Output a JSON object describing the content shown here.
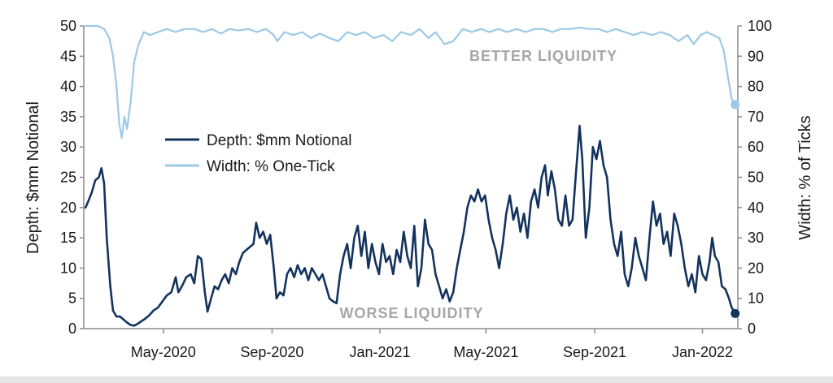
{
  "chart_data": {
    "type": "line",
    "title": "",
    "xlabel": "",
    "ylabel_left": "Depth: $mm Notional",
    "ylabel_right": "Width: % of Ticks",
    "ylim_left": [
      0,
      50
    ],
    "ylim_right": [
      0,
      100
    ],
    "yticks_left": [
      "0",
      "5",
      "10",
      "15",
      "20",
      "25",
      "30",
      "35",
      "40",
      "45",
      "50"
    ],
    "yticks_right": [
      "0",
      "10",
      "20",
      "30",
      "40",
      "50",
      "60",
      "70",
      "80",
      "90",
      "100"
    ],
    "x_tick_labels": [
      {
        "date": "2020-05-01",
        "label": "May-2020"
      },
      {
        "date": "2020-09-01",
        "label": "Sep-2020"
      },
      {
        "date": "2021-01-01",
        "label": "Jan-2021"
      },
      {
        "date": "2021-05-01",
        "label": "May-2021"
      },
      {
        "date": "2021-09-01",
        "label": "Sep-2021"
      },
      {
        "date": "2022-01-01",
        "label": "Jan-2022"
      }
    ],
    "xlim": [
      "2020-02-01",
      "2022-02-10"
    ],
    "legend": {
      "placement": "center-left",
      "entries": [
        "Depth: $mm Notional",
        "Width: % One-Tick"
      ]
    },
    "annotations": {
      "top": "BETTER LIQUIDITY",
      "bottom": "WORSE LIQUIDITY"
    },
    "series": [
      {
        "name": "Depth: $mm Notional",
        "axis": "left",
        "color": "#13335e",
        "points": [
          [
            "2020-02-03",
            20
          ],
          [
            "2020-02-06",
            21
          ],
          [
            "2020-02-10",
            22.5
          ],
          [
            "2020-02-14",
            24.5
          ],
          [
            "2020-02-18",
            25
          ],
          [
            "2020-02-21",
            26.5
          ],
          [
            "2020-02-24",
            24
          ],
          [
            "2020-02-27",
            15
          ],
          [
            "2020-03-02",
            7
          ],
          [
            "2020-03-05",
            3
          ],
          [
            "2020-03-09",
            2
          ],
          [
            "2020-03-13",
            2
          ],
          [
            "2020-03-17",
            1.5
          ],
          [
            "2020-03-21",
            1
          ],
          [
            "2020-03-25",
            0.6
          ],
          [
            "2020-03-29",
            0.5
          ],
          [
            "2020-04-02",
            0.8
          ],
          [
            "2020-04-06",
            1.2
          ],
          [
            "2020-04-10",
            1.6
          ],
          [
            "2020-04-15",
            2.2
          ],
          [
            "2020-04-20",
            3
          ],
          [
            "2020-04-25",
            3.5
          ],
          [
            "2020-04-30",
            4.5
          ],
          [
            "2020-05-05",
            5.5
          ],
          [
            "2020-05-10",
            6
          ],
          [
            "2020-05-15",
            8.5
          ],
          [
            "2020-05-18",
            6
          ],
          [
            "2020-05-22",
            7
          ],
          [
            "2020-05-27",
            8.5
          ],
          [
            "2020-06-01",
            9
          ],
          [
            "2020-06-05",
            7.5
          ],
          [
            "2020-06-09",
            12
          ],
          [
            "2020-06-13",
            11.5
          ],
          [
            "2020-06-17",
            6
          ],
          [
            "2020-06-20",
            2.8
          ],
          [
            "2020-06-24",
            5
          ],
          [
            "2020-06-28",
            7
          ],
          [
            "2020-07-02",
            6.5
          ],
          [
            "2020-07-06",
            8
          ],
          [
            "2020-07-10",
            9
          ],
          [
            "2020-07-14",
            7.5
          ],
          [
            "2020-07-18",
            10
          ],
          [
            "2020-07-22",
            9
          ],
          [
            "2020-07-26",
            11
          ],
          [
            "2020-07-30",
            12.5
          ],
          [
            "2020-08-03",
            13
          ],
          [
            "2020-08-07",
            13.5
          ],
          [
            "2020-08-11",
            14
          ],
          [
            "2020-08-14",
            17.5
          ],
          [
            "2020-08-18",
            15
          ],
          [
            "2020-08-22",
            16
          ],
          [
            "2020-08-26",
            14
          ],
          [
            "2020-08-30",
            15.5
          ],
          [
            "2020-09-03",
            10
          ],
          [
            "2020-09-06",
            5
          ],
          [
            "2020-09-10",
            6
          ],
          [
            "2020-09-14",
            5.5
          ],
          [
            "2020-09-18",
            9
          ],
          [
            "2020-09-22",
            10
          ],
          [
            "2020-09-26",
            8.5
          ],
          [
            "2020-09-30",
            10.5
          ],
          [
            "2020-10-04",
            9
          ],
          [
            "2020-10-08",
            10
          ],
          [
            "2020-10-12",
            8
          ],
          [
            "2020-10-16",
            10
          ],
          [
            "2020-10-20",
            9
          ],
          [
            "2020-10-24",
            8
          ],
          [
            "2020-10-28",
            9
          ],
          [
            "2020-11-01",
            7
          ],
          [
            "2020-11-05",
            5
          ],
          [
            "2020-11-09",
            4.5
          ],
          [
            "2020-11-13",
            4.2
          ],
          [
            "2020-11-17",
            9
          ],
          [
            "2020-11-21",
            12
          ],
          [
            "2020-11-25",
            14
          ],
          [
            "2020-11-29",
            10
          ],
          [
            "2020-12-03",
            15
          ],
          [
            "2020-12-07",
            17
          ],
          [
            "2020-12-11",
            12
          ],
          [
            "2020-12-15",
            16
          ],
          [
            "2020-12-19",
            10
          ],
          [
            "2020-12-23",
            14
          ],
          [
            "2020-12-27",
            11
          ],
          [
            "2020-12-31",
            9
          ],
          [
            "2021-01-04",
            14
          ],
          [
            "2021-01-08",
            11
          ],
          [
            "2021-01-12",
            12
          ],
          [
            "2021-01-16",
            9
          ],
          [
            "2021-01-20",
            13
          ],
          [
            "2021-01-24",
            11
          ],
          [
            "2021-01-28",
            16
          ],
          [
            "2021-02-01",
            12
          ],
          [
            "2021-02-05",
            10
          ],
          [
            "2021-02-09",
            17
          ],
          [
            "2021-02-13",
            7
          ],
          [
            "2021-02-17",
            10
          ],
          [
            "2021-02-21",
            18
          ],
          [
            "2021-02-25",
            14
          ],
          [
            "2021-03-01",
            13
          ],
          [
            "2021-03-05",
            9
          ],
          [
            "2021-03-09",
            7
          ],
          [
            "2021-03-13",
            5
          ],
          [
            "2021-03-17",
            6.5
          ],
          [
            "2021-03-21",
            4.5
          ],
          [
            "2021-03-25",
            6
          ],
          [
            "2021-03-29",
            10
          ],
          [
            "2021-04-02",
            13
          ],
          [
            "2021-04-06",
            16
          ],
          [
            "2021-04-10",
            20
          ],
          [
            "2021-04-14",
            22
          ],
          [
            "2021-04-18",
            21
          ],
          [
            "2021-04-22",
            23
          ],
          [
            "2021-04-26",
            21
          ],
          [
            "2021-04-30",
            22
          ],
          [
            "2021-05-04",
            18
          ],
          [
            "2021-05-08",
            15
          ],
          [
            "2021-05-12",
            13
          ],
          [
            "2021-05-16",
            10
          ],
          [
            "2021-05-20",
            14
          ],
          [
            "2021-05-24",
            19
          ],
          [
            "2021-05-28",
            22
          ],
          [
            "2021-06-01",
            18
          ],
          [
            "2021-06-05",
            20
          ],
          [
            "2021-06-09",
            16
          ],
          [
            "2021-06-13",
            19
          ],
          [
            "2021-06-17",
            15
          ],
          [
            "2021-06-21",
            21
          ],
          [
            "2021-06-25",
            23
          ],
          [
            "2021-06-29",
            20
          ],
          [
            "2021-07-03",
            25
          ],
          [
            "2021-07-07",
            27
          ],
          [
            "2021-07-10",
            22
          ],
          [
            "2021-07-14",
            26
          ],
          [
            "2021-07-18",
            23
          ],
          [
            "2021-07-22",
            18
          ],
          [
            "2021-07-26",
            17
          ],
          [
            "2021-07-30",
            22
          ],
          [
            "2021-08-03",
            17
          ],
          [
            "2021-08-07",
            18
          ],
          [
            "2021-08-11",
            26
          ],
          [
            "2021-08-15",
            33.5
          ],
          [
            "2021-08-18",
            28
          ],
          [
            "2021-08-22",
            15
          ],
          [
            "2021-08-26",
            20
          ],
          [
            "2021-08-30",
            30
          ],
          [
            "2021-09-03",
            28
          ],
          [
            "2021-09-07",
            31
          ],
          [
            "2021-09-11",
            27
          ],
          [
            "2021-09-15",
            25
          ],
          [
            "2021-09-19",
            18
          ],
          [
            "2021-09-23",
            14
          ],
          [
            "2021-09-27",
            12
          ],
          [
            "2021-10-01",
            16
          ],
          [
            "2021-10-05",
            9
          ],
          [
            "2021-10-09",
            7
          ],
          [
            "2021-10-13",
            10
          ],
          [
            "2021-10-17",
            15
          ],
          [
            "2021-10-21",
            12
          ],
          [
            "2021-10-25",
            10
          ],
          [
            "2021-10-29",
            8
          ],
          [
            "2021-11-02",
            15
          ],
          [
            "2021-11-06",
            21
          ],
          [
            "2021-11-10",
            17
          ],
          [
            "2021-11-14",
            19
          ],
          [
            "2021-11-18",
            14
          ],
          [
            "2021-11-22",
            16
          ],
          [
            "2021-11-26",
            12
          ],
          [
            "2021-11-30",
            19
          ],
          [
            "2021-12-04",
            17
          ],
          [
            "2021-12-08",
            14
          ],
          [
            "2021-12-12",
            10
          ],
          [
            "2021-12-16",
            7
          ],
          [
            "2021-12-20",
            9
          ],
          [
            "2021-12-24",
            6
          ],
          [
            "2021-12-28",
            12
          ],
          [
            "2022-01-01",
            9
          ],
          [
            "2022-01-05",
            8
          ],
          [
            "2022-01-09",
            11
          ],
          [
            "2022-01-12",
            15
          ],
          [
            "2022-01-15",
            12
          ],
          [
            "2022-01-19",
            11
          ],
          [
            "2022-01-23",
            7
          ],
          [
            "2022-01-27",
            6.5
          ],
          [
            "2022-01-31",
            5
          ],
          [
            "2022-02-03",
            3.5
          ],
          [
            "2022-02-07",
            2.5
          ]
        ]
      },
      {
        "name": "Width: % One-Tick",
        "axis": "right",
        "color": "#9cc9e8",
        "points": [
          [
            "2020-02-03",
            100
          ],
          [
            "2020-02-10",
            100
          ],
          [
            "2020-02-17",
            100
          ],
          [
            "2020-02-24",
            99
          ],
          [
            "2020-03-01",
            96
          ],
          [
            "2020-03-05",
            90
          ],
          [
            "2020-03-09",
            80
          ],
          [
            "2020-03-12",
            68
          ],
          [
            "2020-03-15",
            63
          ],
          [
            "2020-03-18",
            70
          ],
          [
            "2020-03-21",
            66
          ],
          [
            "2020-03-25",
            75
          ],
          [
            "2020-03-29",
            88
          ],
          [
            "2020-04-03",
            94
          ],
          [
            "2020-04-09",
            98
          ],
          [
            "2020-04-16",
            97
          ],
          [
            "2020-04-25",
            98
          ],
          [
            "2020-05-05",
            99
          ],
          [
            "2020-05-15",
            98
          ],
          [
            "2020-05-25",
            99
          ],
          [
            "2020-06-05",
            99
          ],
          [
            "2020-06-15",
            98
          ],
          [
            "2020-06-25",
            99
          ],
          [
            "2020-07-05",
            97.5
          ],
          [
            "2020-07-15",
            99
          ],
          [
            "2020-07-25",
            98.5
          ],
          [
            "2020-08-05",
            99
          ],
          [
            "2020-08-15",
            98
          ],
          [
            "2020-08-25",
            99
          ],
          [
            "2020-09-03",
            97
          ],
          [
            "2020-09-07",
            95
          ],
          [
            "2020-09-15",
            98
          ],
          [
            "2020-09-25",
            97
          ],
          [
            "2020-10-05",
            98
          ],
          [
            "2020-10-15",
            96
          ],
          [
            "2020-10-25",
            97.5
          ],
          [
            "2020-11-05",
            96
          ],
          [
            "2020-11-15",
            95
          ],
          [
            "2020-11-25",
            98
          ],
          [
            "2020-12-05",
            97
          ],
          [
            "2020-12-15",
            98
          ],
          [
            "2020-12-25",
            96
          ],
          [
            "2021-01-05",
            97
          ],
          [
            "2021-01-15",
            95
          ],
          [
            "2021-01-25",
            98
          ],
          [
            "2021-02-05",
            97
          ],
          [
            "2021-02-15",
            99
          ],
          [
            "2021-02-25",
            96
          ],
          [
            "2021-03-05",
            98
          ],
          [
            "2021-03-15",
            94
          ],
          [
            "2021-03-25",
            95
          ],
          [
            "2021-04-05",
            99
          ],
          [
            "2021-04-15",
            98
          ],
          [
            "2021-04-25",
            99
          ],
          [
            "2021-05-05",
            98
          ],
          [
            "2021-05-15",
            99
          ],
          [
            "2021-05-25",
            98
          ],
          [
            "2021-06-05",
            99
          ],
          [
            "2021-06-15",
            98
          ],
          [
            "2021-06-25",
            99
          ],
          [
            "2021-07-05",
            99
          ],
          [
            "2021-07-15",
            98
          ],
          [
            "2021-07-25",
            99
          ],
          [
            "2021-08-05",
            99
          ],
          [
            "2021-08-15",
            99.5
          ],
          [
            "2021-08-25",
            99
          ],
          [
            "2021-09-05",
            99
          ],
          [
            "2021-09-15",
            98
          ],
          [
            "2021-09-25",
            99
          ],
          [
            "2021-10-05",
            98
          ],
          [
            "2021-10-15",
            97
          ],
          [
            "2021-10-25",
            98
          ],
          [
            "2021-11-05",
            97
          ],
          [
            "2021-11-15",
            98
          ],
          [
            "2021-11-25",
            97
          ],
          [
            "2021-12-05",
            95
          ],
          [
            "2021-12-15",
            97
          ],
          [
            "2021-12-22",
            94
          ],
          [
            "2021-12-30",
            97
          ],
          [
            "2022-01-06",
            98
          ],
          [
            "2022-01-13",
            97
          ],
          [
            "2022-01-20",
            96
          ],
          [
            "2022-01-25",
            92
          ],
          [
            "2022-01-30",
            83
          ],
          [
            "2022-02-03",
            76
          ],
          [
            "2022-02-07",
            74
          ]
        ]
      }
    ]
  }
}
